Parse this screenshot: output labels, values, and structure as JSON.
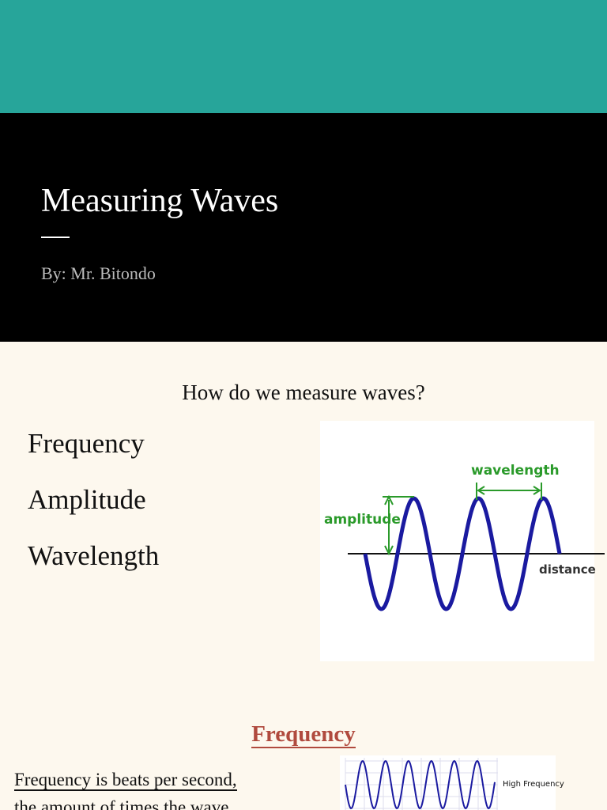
{
  "slide_1": {
    "title": "Measuring Waves",
    "byline": "By: Mr. Bitondo"
  },
  "slide_2": {
    "heading": "How do we measure waves?",
    "items": [
      "Frequency",
      "Amplitude",
      "Wavelength"
    ],
    "diagram": {
      "wavelength": "wavelength",
      "amplitude": "amplitude",
      "distance": "distance"
    }
  },
  "slide_3": {
    "heading": "Frequency",
    "body": [
      "Frequency is beats per second,",
      "the amount of times the wave"
    ],
    "diagram": {
      "label": "High Frequency"
    }
  }
}
